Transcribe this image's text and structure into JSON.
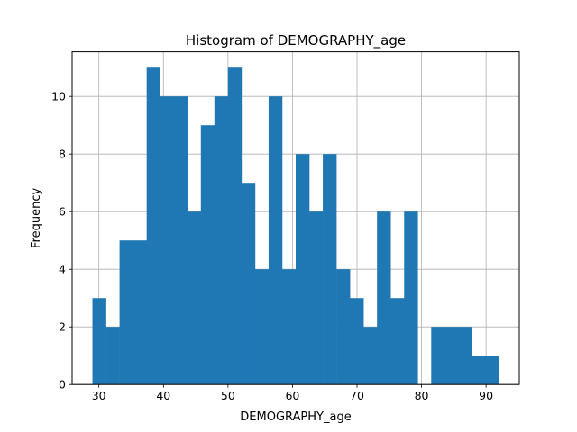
{
  "chart_data": {
    "type": "bar",
    "title": "Histogram of DEMOGRAPHY_age",
    "xlabel": "DEMOGRAPHY_age",
    "ylabel": "Frequency",
    "x_bin_edges": [
      29.0,
      31.1,
      33.2,
      35.3,
      37.4,
      39.5,
      41.6,
      43.7,
      45.8,
      47.9,
      50.0,
      52.1,
      54.2,
      56.3,
      58.4,
      60.5,
      62.6,
      64.7,
      66.8,
      68.9,
      71.0,
      73.1,
      75.2,
      77.3,
      79.4,
      81.5,
      83.6,
      85.7,
      87.8,
      89.9,
      92.0
    ],
    "values": [
      3,
      2,
      5,
      5,
      11,
      10,
      10,
      6,
      9,
      10,
      11,
      7,
      4,
      10,
      4,
      8,
      6,
      8,
      4,
      3,
      2,
      6,
      3,
      6,
      0,
      2,
      2,
      2,
      1,
      1
    ],
    "bar_color": "#1f77b4",
    "xlim": [
      25.85,
      95.15
    ],
    "ylim": [
      0,
      11.55
    ],
    "x_ticks": [
      30,
      40,
      50,
      60,
      70,
      80,
      90
    ],
    "y_ticks": [
      0,
      2,
      4,
      6,
      8,
      10
    ],
    "grid": true
  }
}
